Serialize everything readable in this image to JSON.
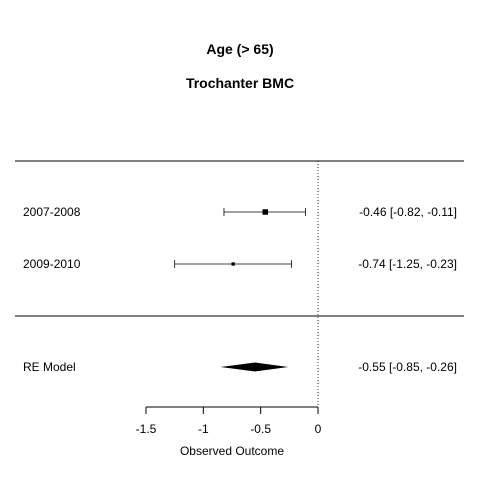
{
  "chart_data": {
    "type": "forest",
    "title": "Age (> 65)",
    "subtitle": "Trochanter BMC",
    "xlabel": "Observed Outcome",
    "xlim": [
      -1.5,
      0
    ],
    "ticks": [
      -1.5,
      -1,
      -0.5,
      0
    ],
    "tick_labels": [
      "-1.5",
      "-1",
      "-0.5",
      "0"
    ],
    "reference_line": 0,
    "studies": [
      {
        "label": "2007-2008",
        "estimate": -0.46,
        "lower": -0.82,
        "upper": -0.11,
        "weight": 3,
        "text": "-0.46 [-0.82, -0.11]"
      },
      {
        "label": "2009-2010",
        "estimate": -0.74,
        "lower": -1.25,
        "upper": -0.23,
        "weight": 1,
        "text": "-0.74 [-1.25, -0.23]"
      }
    ],
    "summary": {
      "label": "RE Model",
      "estimate": -0.55,
      "lower": -0.85,
      "upper": -0.26,
      "text": "-0.55 [-0.85, -0.26]"
    }
  }
}
